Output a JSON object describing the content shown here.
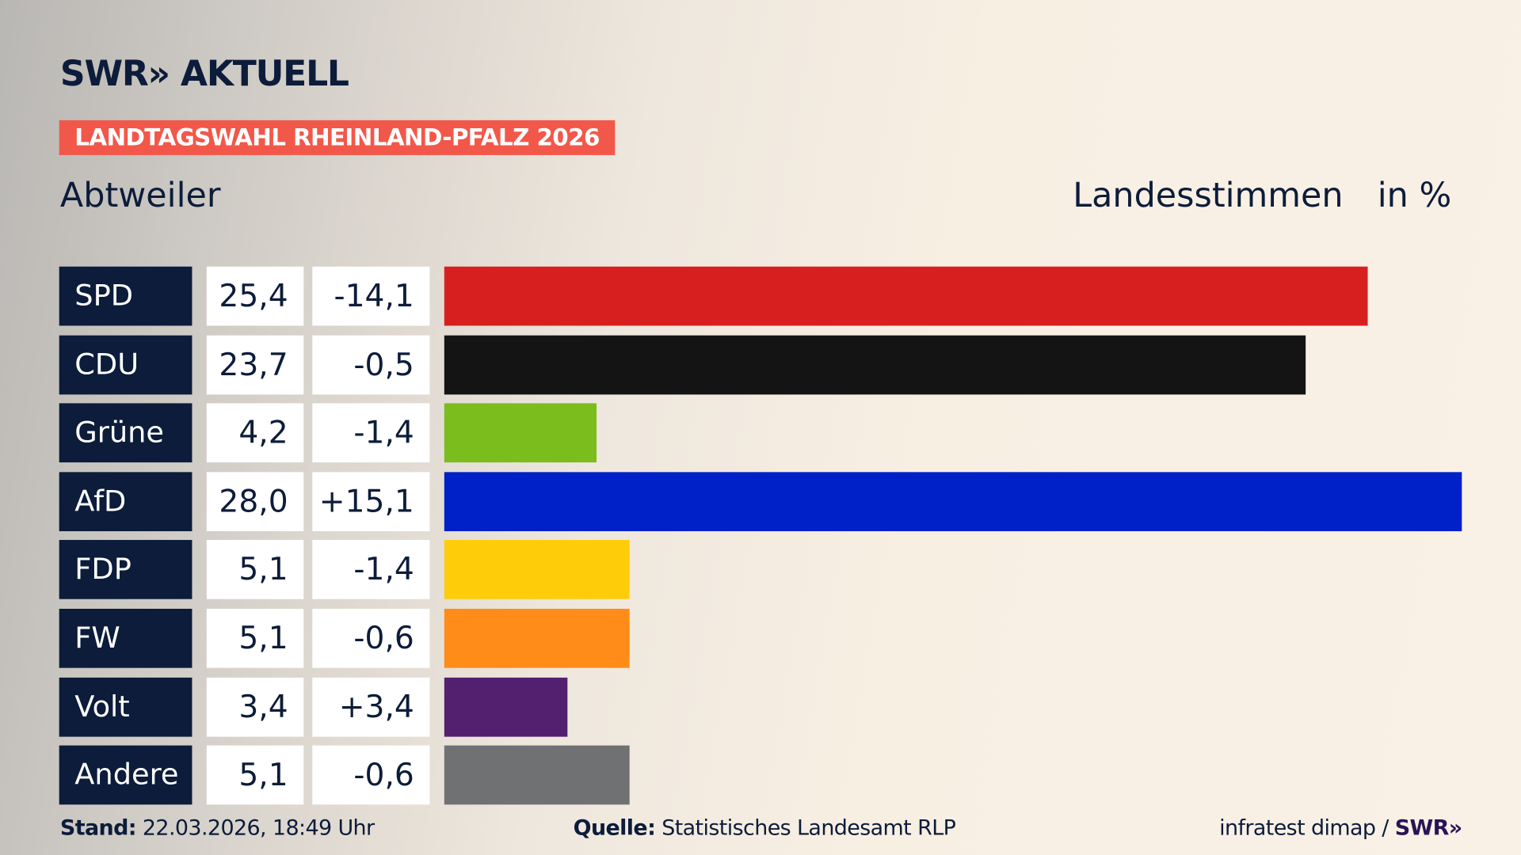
{
  "logo": "SWR» AKTUELL",
  "tag": "LANDTAGSWAHL RHEINLAND-PFALZ 2026",
  "place": "Abtweiler",
  "vote_type": "Landesstimmen",
  "unit": "in %",
  "chart_data": {
    "type": "bar",
    "orientation": "horizontal",
    "categories": [
      "SPD",
      "CDU",
      "Grüne",
      "AfD",
      "FDP",
      "FW",
      "Volt",
      "Andere"
    ],
    "values": [
      25.4,
      23.7,
      4.2,
      28.0,
      5.1,
      5.1,
      3.4,
      5.1
    ],
    "value_labels": [
      "25,4",
      "23,7",
      "4,2",
      "28,0",
      "5,1",
      "5,1",
      "3,4",
      "5,1"
    ],
    "diff_labels": [
      "-14,1",
      "-0,5",
      "-1,4",
      "+15,1",
      "-1,4",
      "-0,6",
      "+3,4",
      "-0,6"
    ],
    "colors": [
      "#d81f20",
      "#141414",
      "#7bbd1c",
      "#0021c8",
      "#ffcc0a",
      "#ff8c18",
      "#52206f",
      "#707173"
    ]
  },
  "footer": {
    "stand_label": "Stand:",
    "stand": "22.03.2026, 18:49 Uhr",
    "source_label": "Quelle:",
    "source": "Statistisches Landesamt RLP",
    "credit": "infratest dimap /",
    "credit_logo": "SWR»"
  }
}
